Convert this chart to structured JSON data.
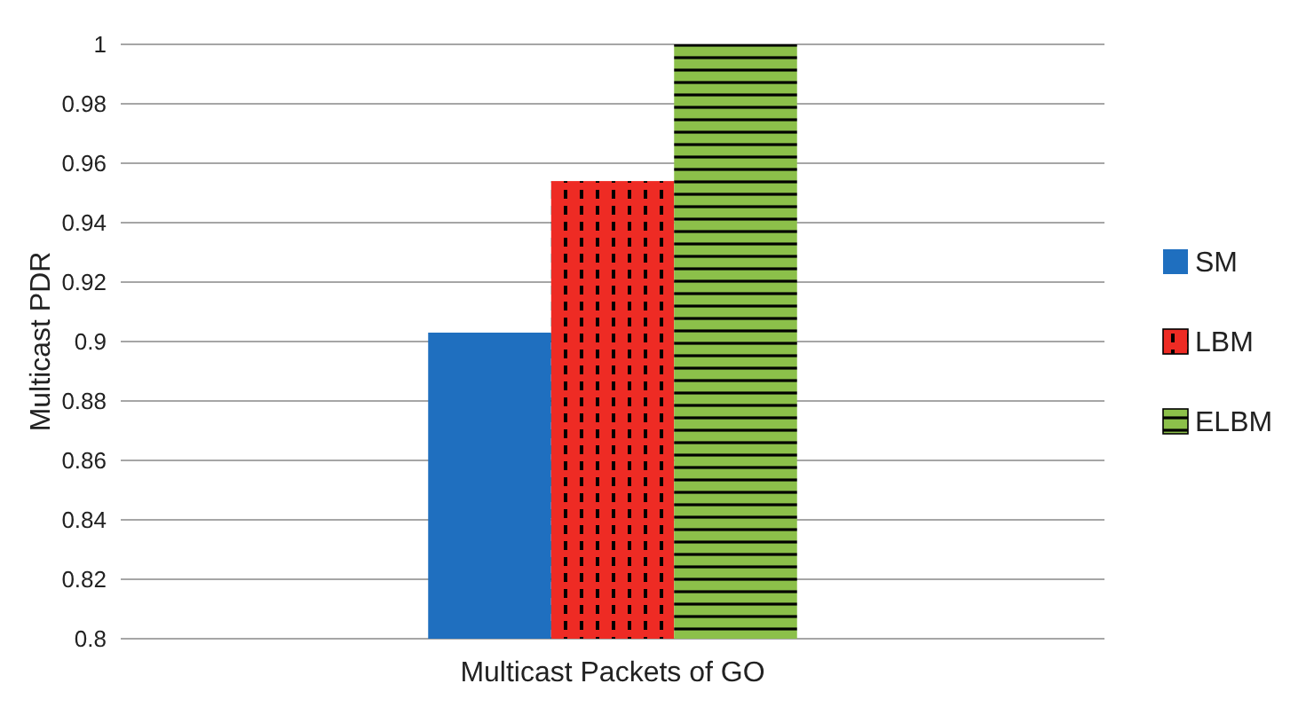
{
  "chart_data": {
    "type": "bar",
    "ylabel": "Multicast PDR",
    "categories": [
      "Multicast Packets of GO"
    ],
    "series": [
      {
        "name": "SM",
        "color": "#1f6fbf",
        "values": [
          0.903
        ]
      },
      {
        "name": "LBM",
        "color": "#ee2b24",
        "values": [
          0.954
        ]
      },
      {
        "name": "ELBM",
        "color": "#8cc04a",
        "values": [
          1.0
        ]
      }
    ],
    "ylim": [
      0.8,
      1
    ],
    "yticks": [
      {
        "value": 0.8,
        "label": "0.8"
      },
      0.82,
      0.84,
      0.86,
      0.88,
      {
        "value": 0.9,
        "label": "0.9"
      },
      0.92,
      0.94,
      0.96,
      0.98,
      {
        "value": 1,
        "label": "1"
      }
    ],
    "grid": "y",
    "legend": "right"
  }
}
